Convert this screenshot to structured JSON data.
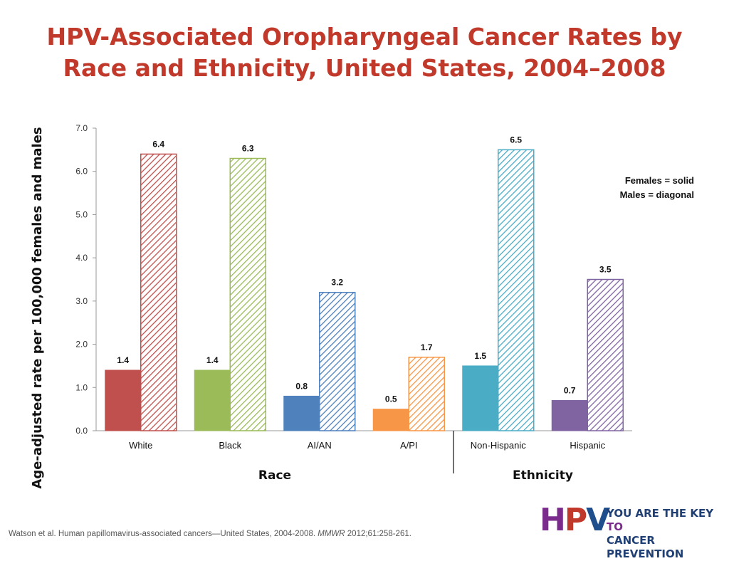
{
  "slide": {
    "title_line1": "HPV-Associated Oropharyngeal Cancer Rates by",
    "title_line2": "Race and Ethnicity, United States, 2004–2008",
    "title_color": "#c0392b",
    "citation_text": "Watson et al. Human papillomavirus-associated cancers—United States, 2004-2008. ",
    "citation_journal": "MMWR",
    "citation_tail": " 2012;61:258-261.",
    "logo": {
      "letters": "HPV",
      "tag_line1": "YOU ARE THE KEY",
      "tag_to": "TO",
      "tag_line2": "CANCER PREVENTION",
      "colors": [
        "#7a2b8c",
        "#c0392b",
        "#1f4e8c"
      ],
      "icon": "hpv-logo-icon"
    }
  },
  "chart_data": {
    "type": "bar",
    "title": "",
    "ylabel": "Age-adjusted rate per 100,000 females and males",
    "ylim": [
      0,
      7
    ],
    "yticks": [
      "0.0",
      "1.0",
      "2.0",
      "3.0",
      "4.0",
      "5.0",
      "6.0",
      "7.0"
    ],
    "grid": false,
    "groups": [
      {
        "name": "Race",
        "categories": [
          "White",
          "Black",
          "AI/AN",
          "A/PI"
        ]
      },
      {
        "name": "Ethnicity",
        "categories": [
          "Non-Hispanic",
          "Hispanic"
        ]
      }
    ],
    "categories": [
      "White",
      "Black",
      "AI/AN",
      "A/PI",
      "Non-Hispanic",
      "Hispanic"
    ],
    "series": [
      {
        "name": "Females",
        "pattern": "solid",
        "values": [
          1.4,
          1.4,
          0.8,
          0.5,
          1.5,
          0.7
        ],
        "labels": [
          "1.4",
          "1.4",
          "0.8",
          "0.5",
          "1.5",
          "0.7"
        ]
      },
      {
        "name": "Males",
        "pattern": "diagonal",
        "values": [
          6.4,
          6.3,
          3.2,
          1.7,
          6.5,
          3.5
        ],
        "labels": [
          "6.4",
          "6.3",
          "3.2",
          "1.7",
          "6.5",
          "3.5"
        ]
      }
    ],
    "category_colors": [
      "#c0504d",
      "#9bbb59",
      "#4f81bd",
      "#f79646",
      "#4bacc6",
      "#8064a2"
    ],
    "legend_lines": [
      "Females = solid",
      "Males = diagonal"
    ],
    "legend_placement": "top-right"
  }
}
